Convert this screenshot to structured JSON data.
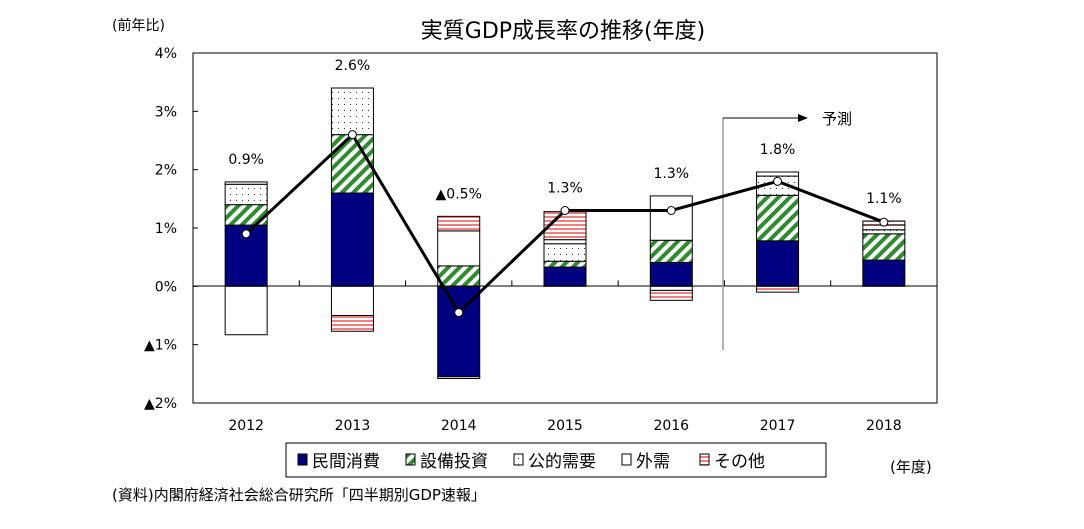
{
  "chart_data": {
    "type": "bar",
    "stacked": true,
    "title": "実質GDP成長率の推移(年度)",
    "ylabel": "(前年比)",
    "xlabel": "(年度)",
    "source": "(資料)内閣府経済社会総合研究所「四半期別GDP速報」",
    "forecast_label": "予測",
    "ylim": [
      -2,
      4
    ],
    "yticks": [
      4,
      3,
      2,
      1,
      0,
      -1,
      -2
    ],
    "ytick_labels": [
      "4%",
      "3%",
      "2%",
      "1%",
      "0%",
      "▲1%",
      "▲2%"
    ],
    "categories": [
      "2012",
      "2013",
      "2014",
      "2015",
      "2016",
      "2017",
      "2018"
    ],
    "forecast_from": "2017",
    "legend_placement": "bottom",
    "series": [
      {
        "name": "民間消費",
        "color": "#000080",
        "pattern": "solid",
        "values": [
          1.05,
          1.6,
          -1.55,
          0.33,
          0.41,
          0.78,
          0.45
        ]
      },
      {
        "name": "設備投資",
        "color": "#2e8b2e",
        "pattern": "diagonal",
        "values": [
          0.35,
          1.0,
          0.35,
          0.1,
          0.38,
          0.78,
          0.45
        ]
      },
      {
        "name": "公的需要",
        "color": "#555555",
        "pattern": "dots",
        "values": [
          0.35,
          0.8,
          -0.03,
          0.3,
          -0.07,
          0.33,
          0.07
        ]
      },
      {
        "name": "外需",
        "color": "#ffffff",
        "pattern": "none",
        "values": [
          -0.83,
          -0.5,
          0.6,
          0.07,
          0.76,
          0.07,
          0.08
        ]
      },
      {
        "name": "その他",
        "color": "#f08080",
        "pattern": "horizontal",
        "values": [
          0.04,
          -0.27,
          0.25,
          0.48,
          -0.17,
          -0.1,
          0.07
        ]
      }
    ],
    "total": {
      "values": [
        0.9,
        2.6,
        -0.45,
        1.3,
        1.3,
        1.8,
        1.1
      ],
      "labels": [
        "0.9%",
        "2.6%",
        "▲0.5%",
        "1.3%",
        "1.3%",
        "1.8%",
        "1.1%"
      ]
    }
  }
}
